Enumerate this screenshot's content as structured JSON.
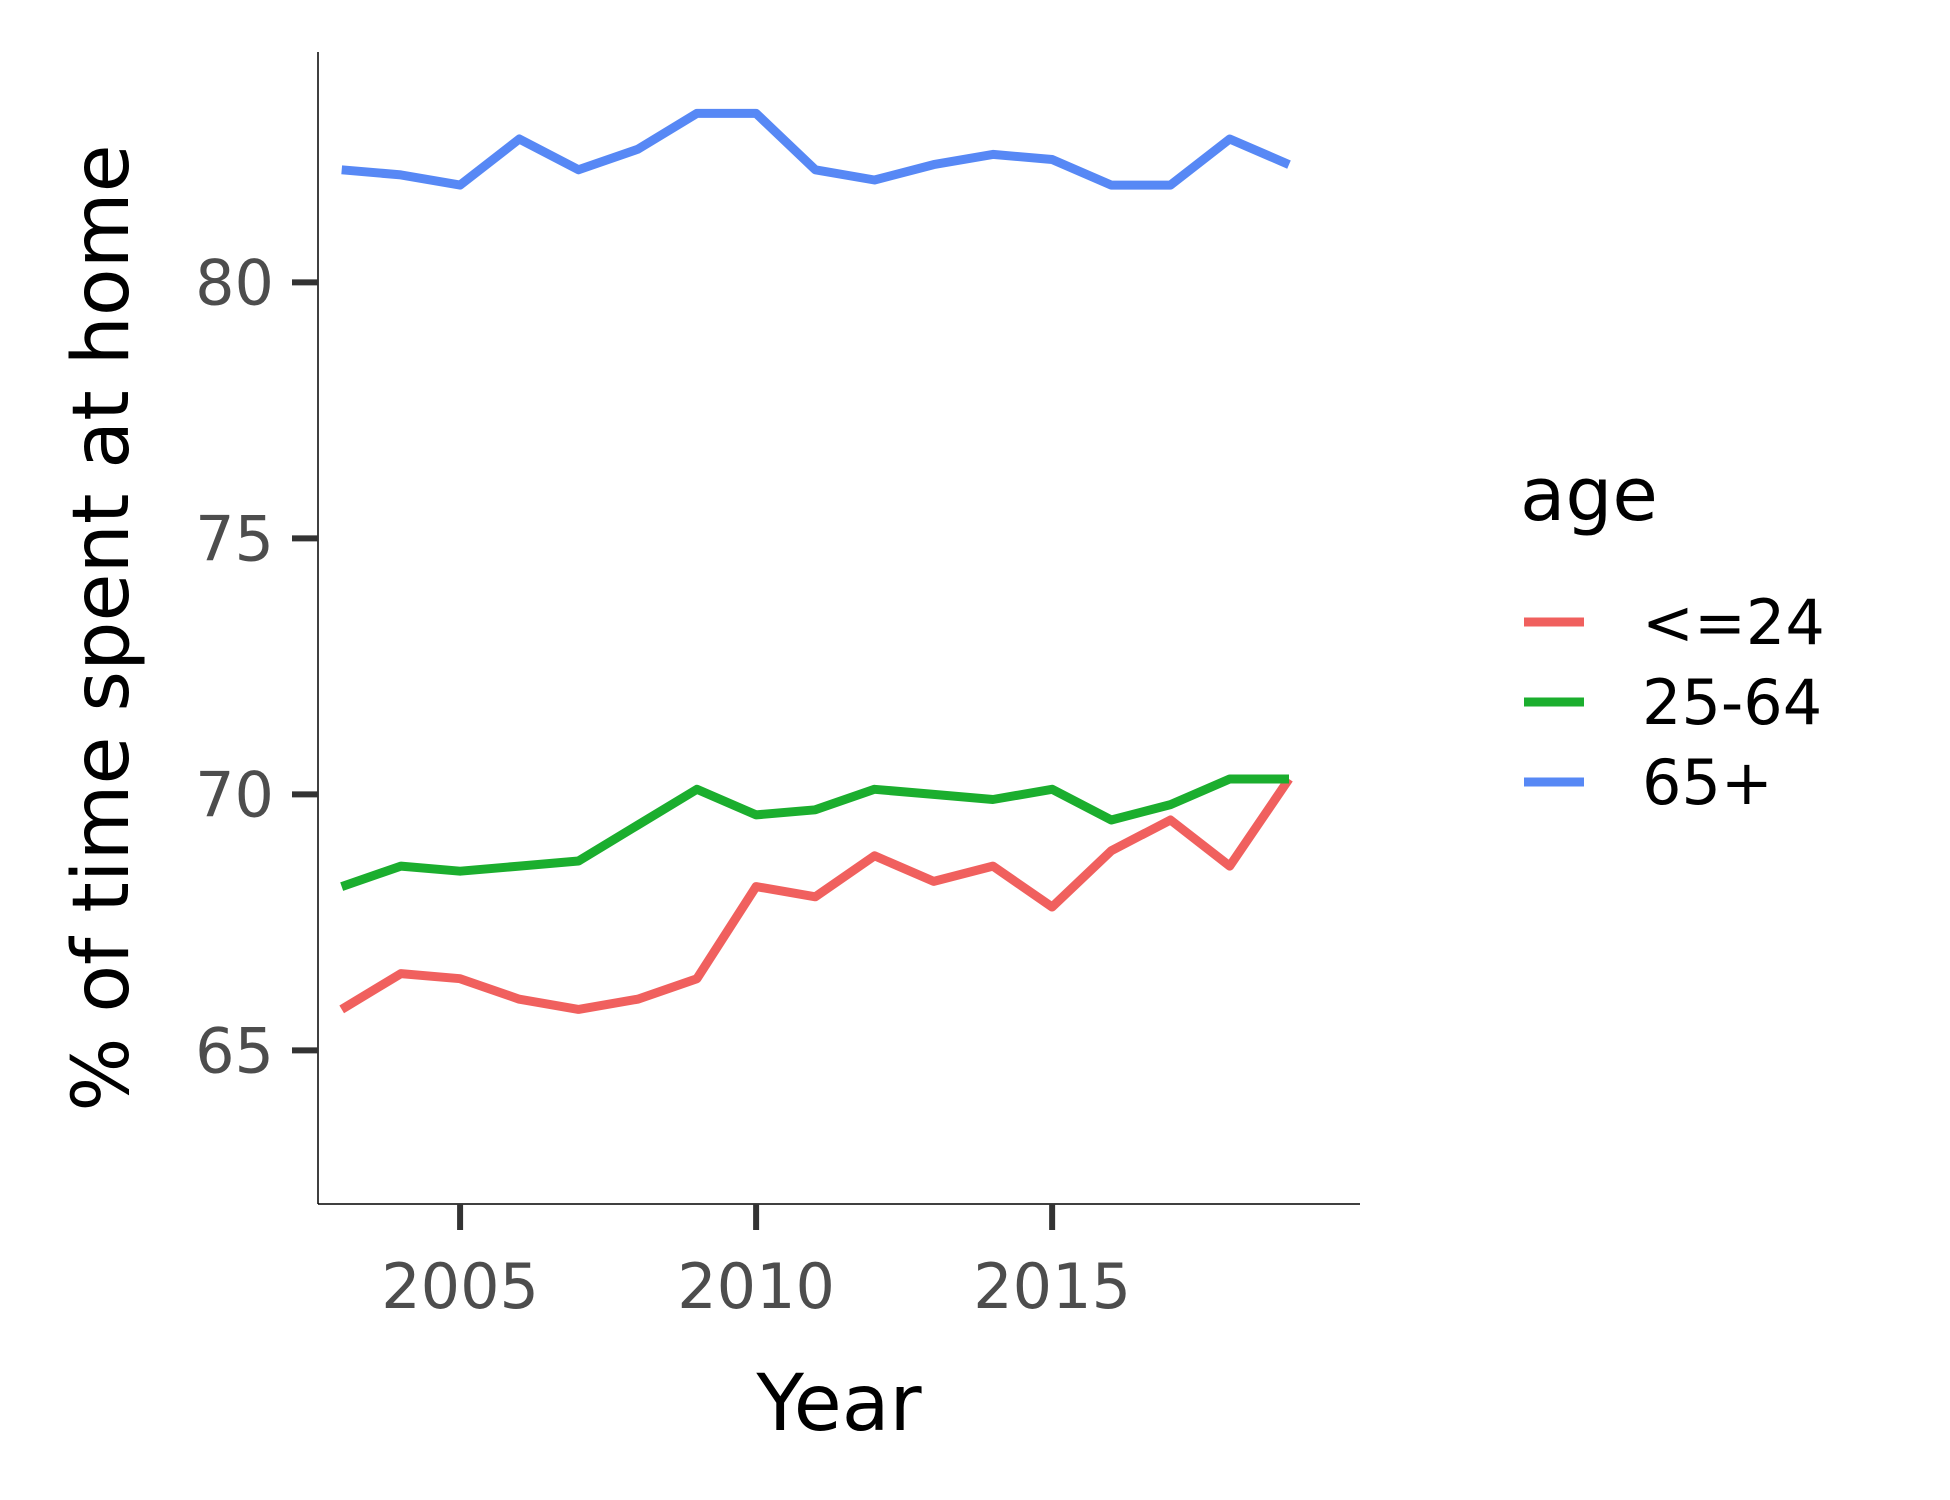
{
  "chart_data": {
    "type": "line",
    "xlabel": "Year",
    "ylabel": "% of time spent at home",
    "xlim": [
      2002.6,
      2020.2
    ],
    "ylim": [
      62.0,
      84.5
    ],
    "x_ticks": [
      2005,
      2010,
      2015
    ],
    "y_ticks": [
      65,
      70,
      75,
      80
    ],
    "grid": false,
    "legend_position": "right",
    "legend_title": "age",
    "x": [
      2003,
      2004,
      2005,
      2006,
      2007,
      2008,
      2009,
      2010,
      2011,
      2012,
      2013,
      2014,
      2015,
      2016,
      2017,
      2018,
      2019
    ],
    "series": [
      {
        "name": "<=24",
        "color": "#F0605E",
        "values": [
          65.8,
          66.5,
          66.4,
          66.0,
          65.8,
          66.0,
          66.4,
          68.2,
          68.0,
          68.8,
          68.3,
          68.6,
          67.8,
          68.9,
          69.5,
          68.6,
          70.3
        ]
      },
      {
        "name": "25-64",
        "color": "#1BAE2E",
        "values": [
          68.2,
          68.6,
          68.5,
          68.6,
          68.7,
          69.4,
          70.1,
          69.6,
          69.7,
          70.1,
          70.0,
          69.9,
          70.1,
          69.5,
          69.8,
          70.3,
          70.3
        ]
      },
      {
        "name": "65+",
        "color": "#5788F5",
        "values": [
          82.2,
          82.1,
          81.9,
          82.8,
          82.2,
          82.6,
          83.3,
          83.3,
          82.2,
          82.0,
          82.3,
          82.5,
          82.4,
          81.9,
          81.9,
          82.8,
          82.3
        ]
      }
    ]
  }
}
